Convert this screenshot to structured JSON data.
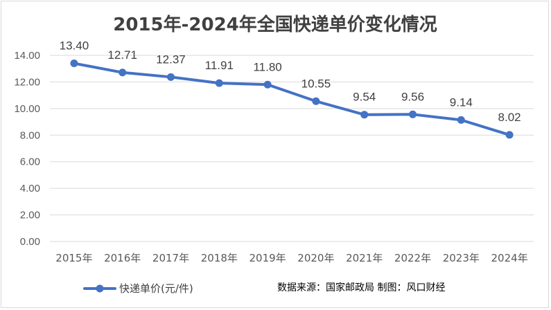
{
  "chart_data": {
    "type": "line",
    "title": "2015年-2024年全国快递单价变化情况",
    "categories": [
      "2015年",
      "2016年",
      "2017年",
      "2018年",
      "2019年",
      "2020年",
      "2021年",
      "2022年",
      "2023年",
      "2024年"
    ],
    "series": [
      {
        "name": "快递单价(元/件)",
        "values": [
          13.4,
          12.71,
          12.37,
          11.91,
          11.8,
          10.55,
          9.54,
          9.56,
          9.14,
          8.02
        ],
        "labels": [
          "13.40",
          "12.71",
          "12.37",
          "11.91",
          "11.80",
          "10.55",
          "9.54",
          "9.56",
          "9.14",
          "8.02"
        ]
      }
    ],
    "yticks": [
      "0.00",
      "2.00",
      "4.00",
      "6.00",
      "8.00",
      "10.00",
      "12.00",
      "14.00"
    ],
    "ylim": [
      0,
      14
    ],
    "grid": true,
    "legend_position": "bottom-left",
    "source_note": "数据来源：国家邮政局 制图：风口财经",
    "colors": {
      "series": "#4472c4",
      "grid": "#d9d9d9",
      "text": "#595959"
    }
  }
}
